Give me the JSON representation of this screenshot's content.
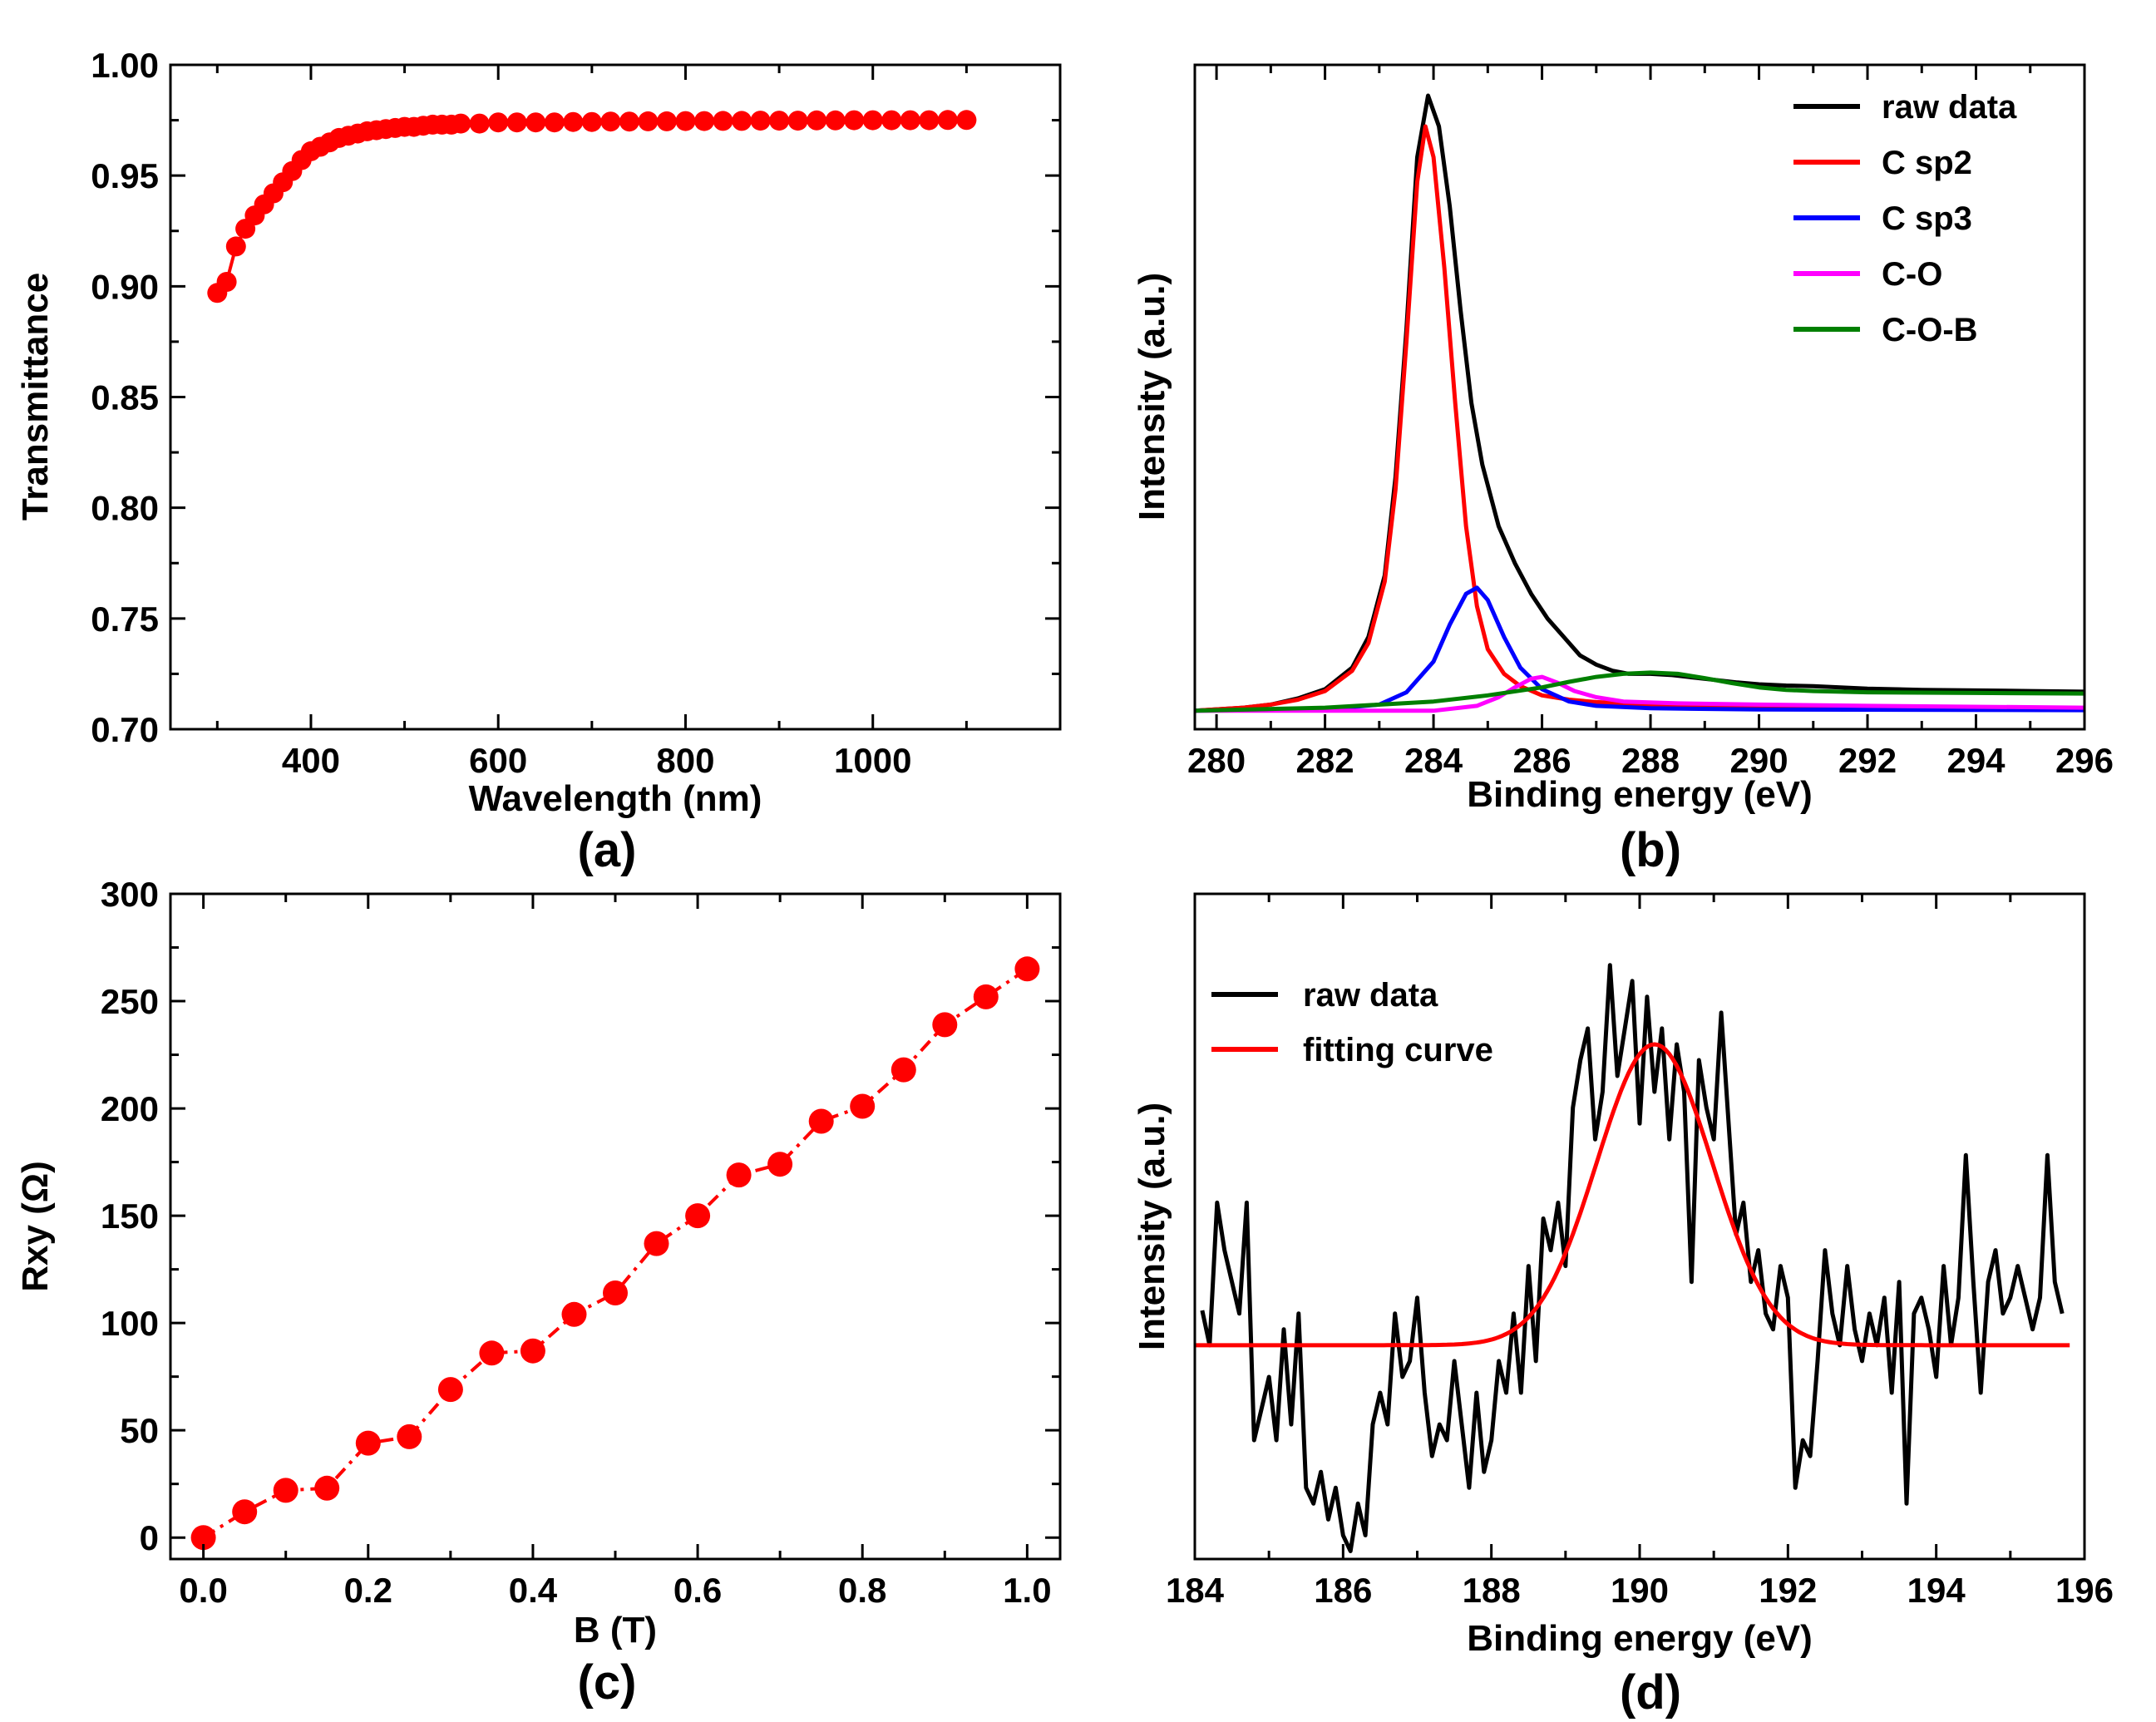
{
  "figure": {
    "panels": [
      "(a)",
      "(b)",
      "(c)",
      "(d)"
    ]
  },
  "colors": {
    "red": "#ff0000",
    "black": "#000000",
    "blue": "#0000ff",
    "magenta": "#ff00ff",
    "green": "#007f00"
  },
  "chart_data": [
    {
      "id": "a",
      "panel_label": "(a)",
      "type": "line",
      "title": "",
      "xlabel": "Wavelength (nm)",
      "ylabel": "Transmittance",
      "xlim": [
        250,
        1200
      ],
      "ylim": [
        0.7,
        1.0
      ],
      "xticks": [
        400,
        600,
        800,
        1000
      ],
      "yticks": [
        0.7,
        0.75,
        0.8,
        0.85,
        0.9,
        0.95,
        1.0
      ],
      "ytick_labels": [
        "0.70",
        "0.75",
        "0.80",
        "0.85",
        "0.90",
        "0.95",
        "1.00"
      ],
      "grid": false,
      "series": [
        {
          "name": "Transmittance",
          "color": "#ff0000",
          "marker": "circle",
          "x": [
            300,
            310,
            320,
            330,
            340,
            350,
            360,
            370,
            380,
            390,
            400,
            410,
            420,
            430,
            440,
            450,
            460,
            470,
            480,
            490,
            500,
            510,
            520,
            530,
            540,
            550,
            560,
            580,
            600,
            620,
            640,
            660,
            680,
            700,
            720,
            740,
            760,
            780,
            800,
            820,
            840,
            860,
            880,
            900,
            920,
            940,
            960,
            980,
            1000,
            1020,
            1040,
            1060,
            1080,
            1100
          ],
          "y": [
            0.897,
            0.902,
            0.918,
            0.926,
            0.932,
            0.937,
            0.942,
            0.947,
            0.952,
            0.957,
            0.961,
            0.963,
            0.965,
            0.967,
            0.968,
            0.969,
            0.97,
            0.9705,
            0.971,
            0.9715,
            0.972,
            0.972,
            0.9725,
            0.973,
            0.973,
            0.973,
            0.9735,
            0.9735,
            0.974,
            0.974,
            0.974,
            0.974,
            0.9742,
            0.9742,
            0.9744,
            0.9744,
            0.9745,
            0.9745,
            0.9746,
            0.9746,
            0.9747,
            0.9747,
            0.9748,
            0.9748,
            0.9748,
            0.9749,
            0.9749,
            0.975,
            0.975,
            0.975,
            0.975,
            0.975,
            0.9751,
            0.9751
          ]
        }
      ]
    },
    {
      "id": "b",
      "panel_label": "(b)",
      "type": "line",
      "title": "",
      "xlabel": "Binding energy (eV)",
      "ylabel": "Intensity (a.u.)",
      "xlim": [
        279.6,
        296
      ],
      "ylim": [
        -0.03,
        1.05
      ],
      "xticks": [
        280,
        282,
        284,
        286,
        288,
        290,
        292,
        294,
        296
      ],
      "yticks": [],
      "grid": false,
      "legend_position": "top-right",
      "series": [
        {
          "name": "raw data",
          "color": "#000000",
          "x": [
            279.6,
            280.5,
            281.0,
            281.5,
            282.0,
            282.5,
            282.8,
            283.1,
            283.3,
            283.5,
            283.7,
            283.9,
            284.1,
            284.3,
            284.5,
            284.7,
            284.9,
            285.2,
            285.5,
            285.8,
            286.1,
            286.4,
            286.7,
            287.0,
            287.3,
            287.6,
            288.0,
            288.4,
            288.8,
            289.2,
            289.6,
            290.0,
            290.5,
            291.0,
            291.5,
            292.0,
            293.0,
            294.0,
            295.0,
            296.0
          ],
          "y": [
            0.0,
            0.005,
            0.01,
            0.02,
            0.035,
            0.07,
            0.12,
            0.22,
            0.38,
            0.62,
            0.9,
            1.0,
            0.95,
            0.82,
            0.65,
            0.5,
            0.4,
            0.3,
            0.24,
            0.19,
            0.15,
            0.12,
            0.09,
            0.075,
            0.065,
            0.06,
            0.06,
            0.058,
            0.054,
            0.05,
            0.046,
            0.043,
            0.041,
            0.04,
            0.038,
            0.036,
            0.034,
            0.033,
            0.032,
            0.031
          ]
        },
        {
          "name": "C sp2",
          "color": "#ff0000",
          "x": [
            279.6,
            280.5,
            281.0,
            281.5,
            282.0,
            282.5,
            282.8,
            283.1,
            283.3,
            283.5,
            283.7,
            283.85,
            284.0,
            284.2,
            284.4,
            284.6,
            284.8,
            285.0,
            285.3,
            285.6,
            286.0,
            286.5,
            287.0,
            288.0,
            290.0,
            292.0,
            296.0
          ],
          "y": [
            0.0,
            0.005,
            0.01,
            0.018,
            0.032,
            0.065,
            0.11,
            0.21,
            0.36,
            0.6,
            0.86,
            0.95,
            0.9,
            0.72,
            0.5,
            0.3,
            0.17,
            0.1,
            0.06,
            0.04,
            0.025,
            0.018,
            0.014,
            0.01,
            0.006,
            0.004,
            0.002
          ]
        },
        {
          "name": "C sp3",
          "color": "#0000ff",
          "x": [
            279.6,
            282.0,
            283.0,
            283.5,
            284.0,
            284.3,
            284.6,
            284.8,
            285.0,
            285.3,
            285.6,
            286.0,
            286.5,
            287.0,
            288.0,
            290.0,
            296.0
          ],
          "y": [
            0.0,
            0.002,
            0.01,
            0.03,
            0.08,
            0.14,
            0.19,
            0.2,
            0.18,
            0.12,
            0.07,
            0.035,
            0.015,
            0.008,
            0.004,
            0.002,
            0.001
          ]
        },
        {
          "name": "C-O",
          "color": "#ff00ff",
          "x": [
            279.6,
            284.0,
            284.8,
            285.2,
            285.5,
            285.8,
            286.0,
            286.3,
            286.6,
            287.0,
            287.5,
            288.5,
            290.0,
            292.0,
            296.0
          ],
          "y": [
            0.0,
            0.0,
            0.008,
            0.022,
            0.038,
            0.052,
            0.055,
            0.045,
            0.032,
            0.022,
            0.015,
            0.012,
            0.01,
            0.008,
            0.005
          ]
        },
        {
          "name": "C-O-B",
          "color": "#007f00",
          "x": [
            279.6,
            282.0,
            284.0,
            285.0,
            286.0,
            286.5,
            287.0,
            287.5,
            288.0,
            288.5,
            289.0,
            289.5,
            290.0,
            290.5,
            291.0,
            292.0,
            294.0,
            296.0
          ],
          "y": [
            0.0,
            0.005,
            0.015,
            0.025,
            0.038,
            0.047,
            0.055,
            0.06,
            0.062,
            0.06,
            0.053,
            0.045,
            0.038,
            0.034,
            0.032,
            0.03,
            0.029,
            0.028
          ]
        }
      ]
    },
    {
      "id": "c",
      "panel_label": "(c)",
      "type": "line",
      "title": "",
      "xlabel": "B (T)",
      "ylabel": "Rxy (Ω)",
      "xlim": [
        -0.04,
        1.04
      ],
      "ylim": [
        -10,
        300
      ],
      "xticks": [
        0.0,
        0.2,
        0.4,
        0.6,
        0.8,
        1.0
      ],
      "xtick_labels": [
        "0.0",
        "0.2",
        "0.4",
        "0.6",
        "0.8",
        "1.0"
      ],
      "yticks": [
        0,
        50,
        100,
        150,
        200,
        250,
        300
      ],
      "grid": false,
      "series": [
        {
          "name": "Rxy",
          "color": "#ff0000",
          "marker": "circle",
          "dash": "dash-dot",
          "x": [
            0.0,
            0.05,
            0.1,
            0.15,
            0.2,
            0.25,
            0.3,
            0.35,
            0.4,
            0.45,
            0.5,
            0.55,
            0.6,
            0.65,
            0.7,
            0.75,
            0.8,
            0.85,
            0.9,
            0.95,
            1.0
          ],
          "y": [
            0,
            12,
            22,
            23,
            44,
            47,
            69,
            86,
            87,
            104,
            114,
            137,
            150,
            169,
            174,
            194,
            201,
            218,
            239,
            252,
            265
          ]
        }
      ]
    },
    {
      "id": "d",
      "panel_label": "(d)",
      "type": "line",
      "title": "",
      "xlabel": "Binding energy (eV)",
      "ylabel": "Intensity (a.u.)",
      "xlim": [
        184,
        196
      ],
      "ylim": [
        -1.35,
        2.85
      ],
      "xticks": [
        184,
        186,
        188,
        190,
        192,
        194,
        196
      ],
      "yticks": [],
      "grid": false,
      "legend_position": "top-left",
      "series": [
        {
          "name": "raw data",
          "color": "#000000",
          "x": [
            184.1,
            184.2,
            184.3,
            184.4,
            184.5,
            184.6,
            184.7,
            184.8,
            184.9,
            185.0,
            185.1,
            185.2,
            185.3,
            185.4,
            185.5,
            185.6,
            185.7,
            185.8,
            185.9,
            186.0,
            186.1,
            186.2,
            186.3,
            186.4,
            186.5,
            186.6,
            186.7,
            186.8,
            186.9,
            187.0,
            187.1,
            187.2,
            187.3,
            187.4,
            187.5,
            187.6,
            187.7,
            187.8,
            187.9,
            188.0,
            188.1,
            188.2,
            188.3,
            188.4,
            188.5,
            188.6,
            188.7,
            188.8,
            188.9,
            189.0,
            189.1,
            189.2,
            189.3,
            189.4,
            189.5,
            189.6,
            189.7,
            189.8,
            189.9,
            190.0,
            190.1,
            190.2,
            190.3,
            190.4,
            190.5,
            190.6,
            190.7,
            190.8,
            190.9,
            191.0,
            191.1,
            191.2,
            191.3,
            191.4,
            191.5,
            191.6,
            191.7,
            191.8,
            191.9,
            192.0,
            192.1,
            192.2,
            192.3,
            192.4,
            192.5,
            192.6,
            192.7,
            192.8,
            192.9,
            193.0,
            193.1,
            193.2,
            193.3,
            193.4,
            193.5,
            193.6,
            193.7,
            193.8,
            193.9,
            194.0,
            194.1,
            194.2,
            194.3,
            194.4,
            194.5,
            194.6,
            194.7,
            194.8,
            194.9,
            195.0,
            195.1,
            195.2,
            195.3,
            195.4,
            195.5,
            195.6,
            195.7
          ],
          "y": [
            0.22,
            0.0,
            0.9,
            0.6,
            0.4,
            0.2,
            0.9,
            -0.6,
            -0.4,
            -0.2,
            -0.6,
            0.1,
            -0.5,
            0.2,
            -0.9,
            -1.0,
            -0.8,
            -1.1,
            -0.9,
            -1.2,
            -1.3,
            -1.0,
            -1.2,
            -0.5,
            -0.3,
            -0.5,
            0.2,
            -0.2,
            -0.1,
            0.3,
            -0.3,
            -0.7,
            -0.5,
            -0.6,
            -0.1,
            -0.5,
            -0.9,
            -0.3,
            -0.8,
            -0.6,
            -0.1,
            -0.3,
            0.2,
            -0.3,
            0.5,
            -0.1,
            0.8,
            0.6,
            0.9,
            0.5,
            1.5,
            1.8,
            2.0,
            1.3,
            1.6,
            2.4,
            1.7,
            2.0,
            2.3,
            1.4,
            2.2,
            1.6,
            2.0,
            1.3,
            1.9,
            1.6,
            0.4,
            1.8,
            1.5,
            1.3,
            2.1,
            1.4,
            0.7,
            0.9,
            0.4,
            0.6,
            0.2,
            0.1,
            0.5,
            0.3,
            -0.9,
            -0.6,
            -0.7,
            -0.1,
            0.6,
            0.2,
            0.0,
            0.5,
            0.1,
            -0.1,
            0.2,
            0.0,
            0.3,
            -0.3,
            0.4,
            -1.0,
            0.2,
            0.3,
            0.1,
            -0.2,
            0.5,
            0.0,
            0.3,
            1.2,
            0.4,
            -0.3,
            0.4,
            0.6,
            0.2,
            0.3,
            0.5,
            0.3,
            0.1,
            0.3,
            1.2,
            0.4,
            0.2
          ]
        },
        {
          "name": "fitting curve",
          "color": "#ff0000",
          "model": "gaussian",
          "x_range": [
            184.0,
            195.8
          ],
          "baseline": 0.0,
          "amplitude": 1.9,
          "center": 190.2,
          "sigma": 0.78
        }
      ]
    }
  ]
}
